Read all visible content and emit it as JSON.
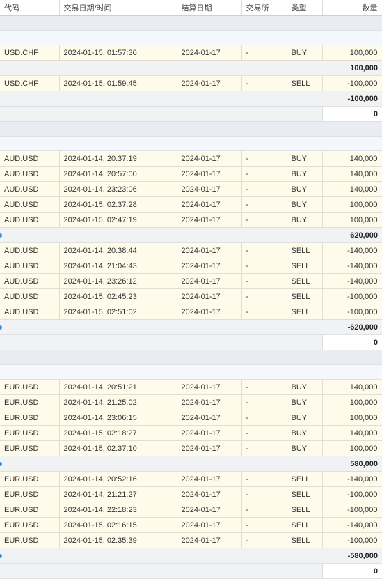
{
  "headers": [
    "代码",
    "交易日期/时间",
    "结算日期",
    "交易所",
    "类型",
    "数量"
  ],
  "sections": [
    {
      "groups": [
        {
          "rows": [
            [
              "USD.CHF",
              "2024-01-15, 01:57:30",
              "2024-01-17",
              "-",
              "BUY",
              "100,000"
            ]
          ],
          "subtotal": "100,000"
        },
        {
          "rows": [
            [
              "USD.CHF",
              "2024-01-15, 01:59:45",
              "2024-01-17",
              "-",
              "SELL",
              "-100,000"
            ]
          ],
          "subtotal": "-100,000"
        }
      ],
      "total": "0"
    },
    {
      "groups": [
        {
          "rows": [
            [
              "AUD.USD",
              "2024-01-14, 20:37:19",
              "2024-01-17",
              "-",
              "BUY",
              "140,000"
            ],
            [
              "AUD.USD",
              "2024-01-14, 20:57:00",
              "2024-01-17",
              "-",
              "BUY",
              "140,000"
            ],
            [
              "AUD.USD",
              "2024-01-14, 23:23:06",
              "2024-01-17",
              "-",
              "BUY",
              "140,000"
            ],
            [
              "AUD.USD",
              "2024-01-15, 02:37:28",
              "2024-01-17",
              "-",
              "BUY",
              "100,000"
            ],
            [
              "AUD.USD",
              "2024-01-15, 02:47:19",
              "2024-01-17",
              "-",
              "BUY",
              "100,000"
            ]
          ],
          "subtotal": "620,000"
        },
        {
          "rows": [
            [
              "AUD.USD",
              "2024-01-14, 20:38:44",
              "2024-01-17",
              "-",
              "SELL",
              "-140,000"
            ],
            [
              "AUD.USD",
              "2024-01-14, 21:04:43",
              "2024-01-17",
              "-",
              "SELL",
              "-140,000"
            ],
            [
              "AUD.USD",
              "2024-01-14, 23:26:12",
              "2024-01-17",
              "-",
              "SELL",
              "-140,000"
            ],
            [
              "AUD.USD",
              "2024-01-15, 02:45:23",
              "2024-01-17",
              "-",
              "SELL",
              "-100,000"
            ],
            [
              "AUD.USD",
              "2024-01-15, 02:51:02",
              "2024-01-17",
              "-",
              "SELL",
              "-100,000"
            ]
          ],
          "subtotal": "-620,000"
        }
      ],
      "total": "0"
    },
    {
      "groups": [
        {
          "rows": [
            [
              "EUR.USD",
              "2024-01-14, 20:51:21",
              "2024-01-17",
              "-",
              "BUY",
              "140,000"
            ],
            [
              "EUR.USD",
              "2024-01-14, 21:25:02",
              "2024-01-17",
              "-",
              "BUY",
              "100,000"
            ],
            [
              "EUR.USD",
              "2024-01-14, 23:06:15",
              "2024-01-17",
              "-",
              "BUY",
              "100,000"
            ],
            [
              "EUR.USD",
              "2024-01-15, 02:18:27",
              "2024-01-17",
              "-",
              "BUY",
              "140,000"
            ],
            [
              "EUR.USD",
              "2024-01-15, 02:37:10",
              "2024-01-17",
              "-",
              "BUY",
              "100,000"
            ]
          ],
          "subtotal": "580,000"
        },
        {
          "rows": [
            [
              "EUR.USD",
              "2024-01-14, 20:52:16",
              "2024-01-17",
              "-",
              "SELL",
              "-140,000"
            ],
            [
              "EUR.USD",
              "2024-01-14, 21:21:27",
              "2024-01-17",
              "-",
              "SELL",
              "-100,000"
            ],
            [
              "EUR.USD",
              "2024-01-14, 22:18:23",
              "2024-01-17",
              "-",
              "SELL",
              "-100,000"
            ],
            [
              "EUR.USD",
              "2024-01-15, 02:16:15",
              "2024-01-17",
              "-",
              "SELL",
              "-140,000"
            ],
            [
              "EUR.USD",
              "2024-01-15, 02:35:39",
              "2024-01-17",
              "-",
              "SELL",
              "-100,000"
            ]
          ],
          "subtotal": "-580,000"
        }
      ],
      "total": "0"
    }
  ]
}
